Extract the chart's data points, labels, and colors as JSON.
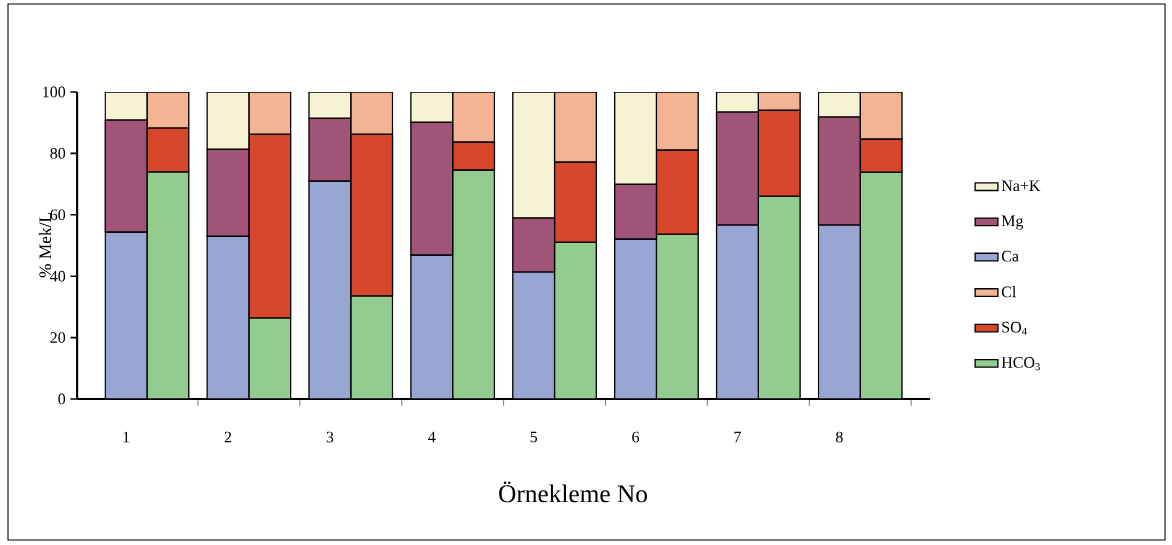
{
  "chart_data": {
    "type": "bar",
    "stacked": true,
    "xlabel": "Örnekleme No",
    "ylabel": "% Mek/L",
    "categories": [
      "1",
      null,
      "2",
      null,
      "3",
      null,
      "4",
      null,
      "5",
      null,
      "6",
      null,
      "7",
      null,
      "8",
      null
    ],
    "series": [
      {
        "name": "HCO$_{3}$",
        "color": "#92cd8f",
        "values": [
          null,
          74,
          null,
          26.4,
          null,
          33.6,
          null,
          74.6,
          null,
          51.1,
          null,
          53.7,
          null,
          66.1,
          null,
          73.9
        ]
      },
      {
        "name": "SO$_{4}$",
        "color": "#d6472b",
        "values": [
          null,
          14.3,
          null,
          59.9,
          null,
          52.7,
          null,
          9.1,
          null,
          26.1,
          null,
          27.4,
          null,
          28,
          null,
          10.8
        ]
      },
      {
        "name": "Cl",
        "color": "#f4b494",
        "values": [
          null,
          11.7,
          null,
          13.7,
          null,
          13.7,
          null,
          16.3,
          null,
          22.8,
          null,
          18.9,
          null,
          5.9,
          null,
          15.3
        ]
      },
      {
        "name": "Ca",
        "color": "#98a6d4",
        "values": [
          54.4,
          null,
          53,
          null,
          71,
          null,
          46.9,
          null,
          41.4,
          null,
          52.1,
          null,
          56.7,
          null,
          56.7,
          null
        ]
      },
      {
        "name": "Mg",
        "color": "#a05478",
        "values": [
          36.5,
          null,
          28.4,
          null,
          20.5,
          null,
          43.3,
          null,
          17.6,
          null,
          17.9,
          null,
          36.8,
          null,
          35.2,
          null
        ]
      },
      {
        "name": "Na+K",
        "color": "#f5f3d3",
        "values": [
          9.1,
          null,
          18.6,
          null,
          8.5,
          null,
          9.8,
          null,
          41,
          null,
          30,
          null,
          6.5,
          null,
          8.1,
          null
        ]
      }
    ],
    "ylim": [
      0,
      100
    ],
    "yticks": [
      0,
      20,
      40,
      60,
      80,
      100
    ],
    "legend": "right"
  }
}
